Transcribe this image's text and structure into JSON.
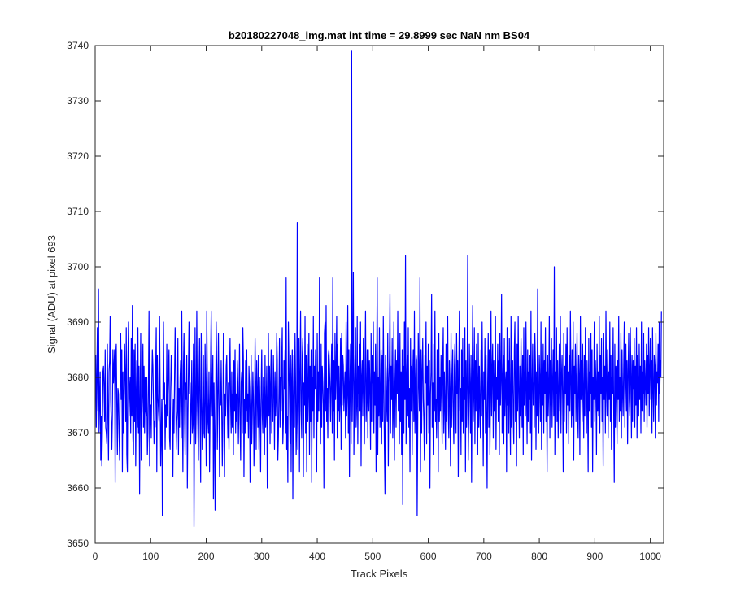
{
  "chart_data": {
    "type": "line",
    "title": "b20180227048_img.mat int time = 29.8999 sec  NaN nm BS04",
    "xlabel": "Track Pixels",
    "ylabel": "Signal (ADU) at pixel 693",
    "xlim": [
      0,
      1024
    ],
    "ylim": [
      3650,
      3740
    ],
    "xticks": [
      0,
      100,
      200,
      300,
      400,
      500,
      600,
      700,
      800,
      900,
      1000
    ],
    "yticks": [
      3650,
      3660,
      3670,
      3680,
      3690,
      3700,
      3710,
      3720,
      3730,
      3740
    ],
    "grid": false,
    "line_color": "#0000ff",
    "series": [
      {
        "x_start": 1,
        "x_step": 1,
        "values": [
          3684,
          3671,
          3680,
          3689,
          3674,
          3696,
          3670,
          3676,
          3681,
          3665,
          3673,
          3664,
          3670,
          3681,
          3682,
          3678,
          3672,
          3685,
          3671,
          3670,
          3668,
          3686,
          3673,
          3665,
          3681,
          3683,
          3691,
          3676,
          3672,
          3667,
          3673,
          3685,
          3679,
          3682,
          3685,
          3661,
          3684,
          3686,
          3675,
          3666,
          3678,
          3677,
          3670,
          3665,
          3678,
          3688,
          3676,
          3685,
          3663,
          3681,
          3670,
          3677,
          3686,
          3680,
          3672,
          3689,
          3666,
          3663,
          3683,
          3690,
          3673,
          3678,
          3680,
          3670,
          3687,
          3673,
          3693,
          3669,
          3666,
          3685,
          3672,
          3686,
          3664,
          3677,
          3683,
          3671,
          3689,
          3670,
          3682,
          3659,
          3676,
          3688,
          3665,
          3673,
          3677,
          3686,
          3671,
          3682,
          3670,
          3680,
          3674,
          3673,
          3680,
          3666,
          3670,
          3679,
          3692,
          3664,
          3673,
          3675,
          3669,
          3679,
          3685,
          3682,
          3675,
          3668,
          3672,
          3671,
          3681,
          3689,
          3663,
          3684,
          3677,
          3674,
          3672,
          3691,
          3678,
          3664,
          3670,
          3676,
          3655,
          3674,
          3690,
          3676,
          3679,
          3667,
          3675,
          3671,
          3686,
          3673,
          3677,
          3681,
          3685,
          3669,
          3667,
          3678,
          3684,
          3680,
          3673,
          3662,
          3676,
          3670,
          3680,
          3689,
          3682,
          3667,
          3672,
          3674,
          3687,
          3666,
          3678,
          3671,
          3680,
          3683,
          3669,
          3692,
          3675,
          3663,
          3682,
          3688,
          3673,
          3666,
          3679,
          3676,
          3684,
          3660,
          3673,
          3681,
          3690,
          3677,
          3679,
          3668,
          3674,
          3683,
          3670,
          3672,
          3686,
          3653,
          3672,
          3689,
          3668,
          3674,
          3692,
          3676,
          3671,
          3665,
          3679,
          3687,
          3673,
          3661,
          3688,
          3676,
          3667,
          3674,
          3684,
          3670,
          3669,
          3686,
          3677,
          3664,
          3692,
          3680,
          3672,
          3670,
          3681,
          3663,
          3674,
          3683,
          3692,
          3678,
          3673,
          3684,
          3658,
          3679,
          3670,
          3656,
          3674,
          3690,
          3682,
          3667,
          3677,
          3688,
          3675,
          3662,
          3678,
          3675,
          3683,
          3674,
          3664,
          3672,
          3688,
          3683,
          3662,
          3677,
          3673,
          3682,
          3684,
          3675,
          3669,
          3679,
          3667,
          3680,
          3687,
          3675,
          3670,
          3681,
          3671,
          3677,
          3666,
          3683,
          3674,
          3685,
          3670,
          3677,
          3672,
          3683,
          3679,
          3668,
          3676,
          3686,
          3672,
          3665,
          3679,
          3681,
          3670,
          3689,
          3683,
          3662,
          3676,
          3670,
          3683,
          3674,
          3685,
          3672,
          3677,
          3669,
          3682,
          3678,
          3661,
          3675,
          3684,
          3668,
          3673,
          3681,
          3676,
          3664,
          3672,
          3687,
          3679,
          3667,
          3683,
          3677,
          3671,
          3684,
          3667,
          3680,
          3674,
          3663,
          3678,
          3685,
          3673,
          3670,
          3680,
          3678,
          3666,
          3684,
          3671,
          3674,
          3682,
          3660,
          3676,
          3688,
          3673,
          3682,
          3668,
          3679,
          3685,
          3670,
          3675,
          3672,
          3684,
          3678,
          3667,
          3681,
          3673,
          3676,
          3688,
          3683,
          3665,
          3669,
          3677,
          3687,
          3671,
          3680,
          3674,
          3683,
          3689,
          3668,
          3672,
          3683,
          3678,
          3685,
          3670,
          3698,
          3667,
          3673,
          3661,
          3690,
          3682,
          3676,
          3668,
          3684,
          3663,
          3680,
          3685,
          3658,
          3676,
          3684,
          3671,
          3688,
          3679,
          3666,
          3672,
          3708,
          3667,
          3679,
          3687,
          3663,
          3681,
          3692,
          3674,
          3669,
          3684,
          3687,
          3662,
          3679,
          3675,
          3691,
          3670,
          3684,
          3663,
          3686,
          3672,
          3678,
          3688,
          3666,
          3682,
          3672,
          3685,
          3661,
          3680,
          3674,
          3691,
          3669,
          3682,
          3678,
          3685,
          3675,
          3663,
          3688,
          3672,
          3681,
          3674,
          3698,
          3677,
          3668,
          3686,
          3671,
          3682,
          3679,
          3675,
          3660,
          3688,
          3690,
          3674,
          3693,
          3672,
          3678,
          3669,
          3684,
          3685,
          3682,
          3678,
          3672,
          3680,
          3686,
          3670,
          3698,
          3674,
          3683,
          3665,
          3688,
          3676,
          3681,
          3691,
          3669,
          3686,
          3674,
          3682,
          3672,
          3676,
          3687,
          3667,
          3688,
          3675,
          3684,
          3682,
          3674,
          3678,
          3681,
          3669,
          3690,
          3673,
          3677,
          3693,
          3670,
          3685,
          3662,
          3679,
          3686,
          3668,
          3739,
          3672,
          3681,
          3699,
          3666,
          3677,
          3683,
          3689,
          3671,
          3675,
          3691,
          3668,
          3682,
          3677,
          3686,
          3674,
          3690,
          3664,
          3680,
          3683,
          3673,
          3687,
          3678,
          3668,
          3681,
          3692,
          3672,
          3676,
          3685,
          3669,
          3685,
          3674,
          3683,
          3678,
          3667,
          3688,
          3672,
          3684,
          3679,
          3690,
          3670,
          3681,
          3675,
          3686,
          3663,
          3679,
          3698,
          3666,
          3680,
          3673,
          3689,
          3671,
          3676,
          3685,
          3668,
          3684,
          3672,
          3691,
          3678,
          3667,
          3659,
          3684,
          3681,
          3675,
          3672,
          3688,
          3664,
          3679,
          3683,
          3695,
          3670,
          3682,
          3676,
          3687,
          3669,
          3674,
          3690,
          3665,
          3678,
          3685,
          3671,
          3683,
          3677,
          3692,
          3674,
          3680,
          3668,
          3688,
          3672,
          3681,
          3666,
          3685,
          3657,
          3682,
          3670,
          3690,
          3676,
          3702,
          3668,
          3679,
          3684,
          3673,
          3689,
          3671,
          3678,
          3663,
          3687,
          3674,
          3682,
          3666,
          3680,
          3685,
          3672,
          3692,
          3670,
          3678,
          3684,
          3683,
          3655,
          3671,
          3688,
          3679,
          3674,
          3698,
          3663,
          3685,
          3670,
          3681,
          3687,
          3676,
          3672,
          3665,
          3684,
          3679,
          3690,
          3668,
          3682,
          3675,
          3686,
          3670,
          3683,
          3660,
          3677,
          3681,
          3695,
          3671,
          3679,
          3666,
          3686,
          3674,
          3692,
          3672,
          3676,
          3669,
          3685,
          3678,
          3663,
          3688,
          3672,
          3680,
          3674,
          3684,
          3677,
          3668,
          3682,
          3689,
          3670,
          3681,
          3675,
          3667,
          3686,
          3672,
          3680,
          3691,
          3674,
          3669,
          3683,
          3677,
          3664,
          3688,
          3671,
          3679,
          3685,
          3673,
          3668,
          3682,
          3686,
          3675,
          3670,
          3688,
          3677,
          3683,
          3662,
          3681,
          3692,
          3674,
          3678,
          3666,
          3685,
          3672,
          3687,
          3670,
          3680,
          3676,
          3689,
          3663,
          3683,
          3671,
          3679,
          3702,
          3665,
          3673,
          3686,
          3678,
          3670,
          3684,
          3661,
          3681,
          3693,
          3672,
          3677,
          3689,
          3668,
          3683,
          3674,
          3686,
          3679,
          3666,
          3688,
          3671,
          3682,
          3675,
          3669,
          3685,
          3673,
          3690,
          3678,
          3664,
          3681,
          3676,
          3687,
          3670,
          3684,
          3673,
          3660,
          3679,
          3688,
          3671,
          3685,
          3666,
          3676,
          3692,
          3673,
          3681,
          3686,
          3669,
          3683,
          3674,
          3679,
          3691,
          3667,
          3680,
          3676,
          3686,
          3672,
          3683,
          3666,
          3688,
          3675,
          3680,
          3695,
          3670,
          3679,
          3684,
          3668,
          3687,
          3673,
          3679,
          3681,
          3663,
          3689,
          3675,
          3683,
          3670,
          3687,
          3676,
          3666,
          3691,
          3671,
          3679,
          3683,
          3673,
          3668,
          3685,
          3690,
          3672,
          3680,
          3664,
          3686,
          3674,
          3691,
          3677,
          3669,
          3682,
          3673,
          3687,
          3679,
          3671,
          3684,
          3666,
          3689,
          3675,
          3681,
          3673,
          3690,
          3678,
          3668,
          3685,
          3672,
          3681,
          3676,
          3684,
          3670,
          3692,
          3665,
          3678,
          3686,
          3675,
          3679,
          3671,
          3688,
          3682,
          3667,
          3681,
          3673,
          3696,
          3676,
          3670,
          3684,
          3679,
          3672,
          3690,
          3667,
          3681,
          3675,
          3686,
          3670,
          3683,
          3677,
          3689,
          3672,
          3681,
          3663,
          3684,
          3673,
          3678,
          3691,
          3669,
          3683,
          3675,
          3687,
          3671,
          3679,
          3685,
          3673,
          3700,
          3666,
          3681,
          3677,
          3689,
          3672,
          3683,
          3669,
          3678,
          3686,
          3674,
          3691,
          3670,
          3680,
          3684,
          3676,
          3663,
          3688,
          3672,
          3682,
          3677,
          3686,
          3670,
          3689,
          3675,
          3681,
          3668,
          3684,
          3674,
          3692,
          3679,
          3671,
          3685,
          3673,
          3690,
          3665,
          3682,
          3677,
          3686,
          3672,
          3679,
          3688,
          3674,
          3669,
          3684,
          3680,
          3666,
          3691,
          3676,
          3683,
          3672,
          3686,
          3678,
          3669,
          3684,
          3673,
          3689,
          3679,
          3670,
          3683,
          3676,
          3663,
          3687,
          3674,
          3681,
          3677,
          3688,
          3671,
          3685,
          3663,
          3680,
          3676,
          3690,
          3672,
          3683,
          3679,
          3666,
          3686,
          3674,
          3681,
          3673,
          3691,
          3670,
          3684,
          3677,
          3687,
          3672,
          3680,
          3664,
          3688,
          3676,
          3682,
          3670,
          3692,
          3678,
          3673,
          3685,
          3669,
          3681,
          3676,
          3690,
          3672,
          3684,
          3667,
          3680,
          3677,
          3689,
          3674,
          3661,
          3686,
          3671,
          3682,
          3679,
          3668,
          3683,
          3676,
          3691,
          3672,
          3680,
          3674,
          3688,
          3669,
          3685,
          3677,
          3673,
          3682,
          3690,
          3671,
          3679,
          3686,
          3674,
          3683,
          3668,
          3681,
          3688,
          3676,
          3673,
          3689,
          3680,
          3669,
          3684,
          3672,
          3683,
          3678,
          3687,
          3671,
          3682,
          3675,
          3689,
          3669,
          3684,
          3679,
          3673,
          3686,
          3676,
          3682,
          3670,
          3690,
          3674,
          3681,
          3677,
          3688,
          3672,
          3683,
          3679,
          3675,
          3686,
          3671,
          3684,
          3677,
          3689,
          3673,
          3681,
          3687,
          3676,
          3683,
          3670,
          3689,
          3678,
          3672,
          3684,
          3682,
          3669,
          3688,
          3675,
          3681,
          3679,
          3686,
          3672,
          3690,
          3677,
          3683,
          3680,
          3692
        ]
      }
    ]
  }
}
